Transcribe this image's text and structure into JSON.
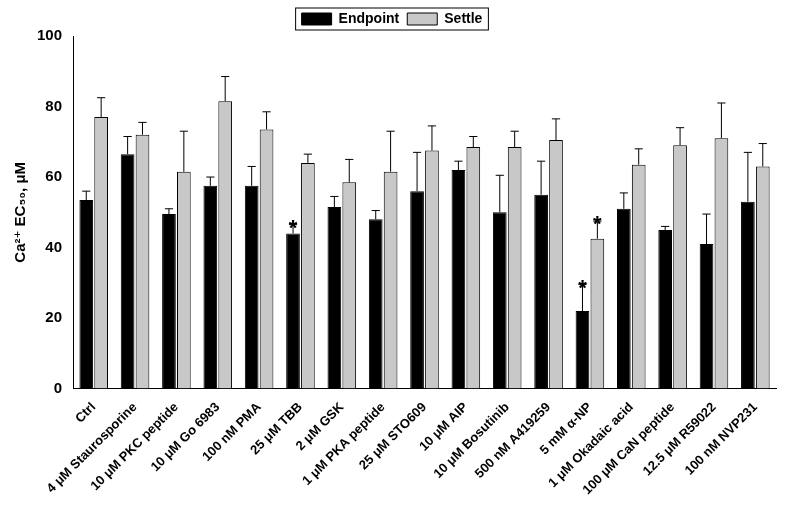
{
  "chart_data": {
    "type": "bar",
    "y_label": "Ca²⁺ EC₅₀, μM",
    "categories": [
      "Ctrl",
      "4 μM Staurosporine",
      "10 μM PKC peptide",
      "10 μM Go 6983",
      "100 nM PMA",
      "25 μM TBB",
      "2 μM GSK",
      "1 μM PKA peptide",
      "25 μM STO609",
      "10 μM AIP",
      "10 μM Bosutinib",
      "500 nM A419259",
      "5 mM α-NP",
      "1 μM Okadaic acid",
      "100 μM CaN peptide",
      "12.5 μM R59022",
      "100 nM NVP231"
    ],
    "series": [
      {
        "name": "Endpoint",
        "color": "#000000",
        "values": [
          53.5,
          66.5,
          49.5,
          57.5,
          57.5,
          44,
          51.5,
          48,
          56,
          62,
          50,
          55,
          22,
          51,
          45,
          41,
          53
        ],
        "errors": [
          2.5,
          5,
          1.5,
          2.5,
          5.5,
          2.5,
          3,
          2.5,
          11,
          2.5,
          10.5,
          9.5,
          7.5,
          4.5,
          1,
          8.5,
          14
        ]
      },
      {
        "name": "Settle",
        "color": "#c8c8c8",
        "values": [
          77,
          72,
          61.5,
          81.5,
          73.5,
          64,
          58.5,
          61.5,
          67.5,
          68.5,
          68.5,
          70.5,
          42.5,
          63.5,
          69,
          71,
          63
        ],
        "errors": [
          5.5,
          3.5,
          11.5,
          7,
          5,
          2.5,
          6.5,
          11.5,
          7,
          3,
          4.5,
          6,
          5,
          4.5,
          5,
          10,
          6.5
        ]
      }
    ],
    "annotations": [
      {
        "text": "*",
        "category": "25 μM TBB",
        "series": "Endpoint"
      },
      {
        "text": "*",
        "category": "5 mM α-NP",
        "series": "Endpoint"
      },
      {
        "text": "*",
        "category": "5 mM α-NP",
        "series": "Settle"
      }
    ],
    "ylim": [
      0,
      100
    ],
    "yticks": [
      0,
      20,
      40,
      60,
      80,
      100
    ],
    "grid": false,
    "legend": "top"
  }
}
